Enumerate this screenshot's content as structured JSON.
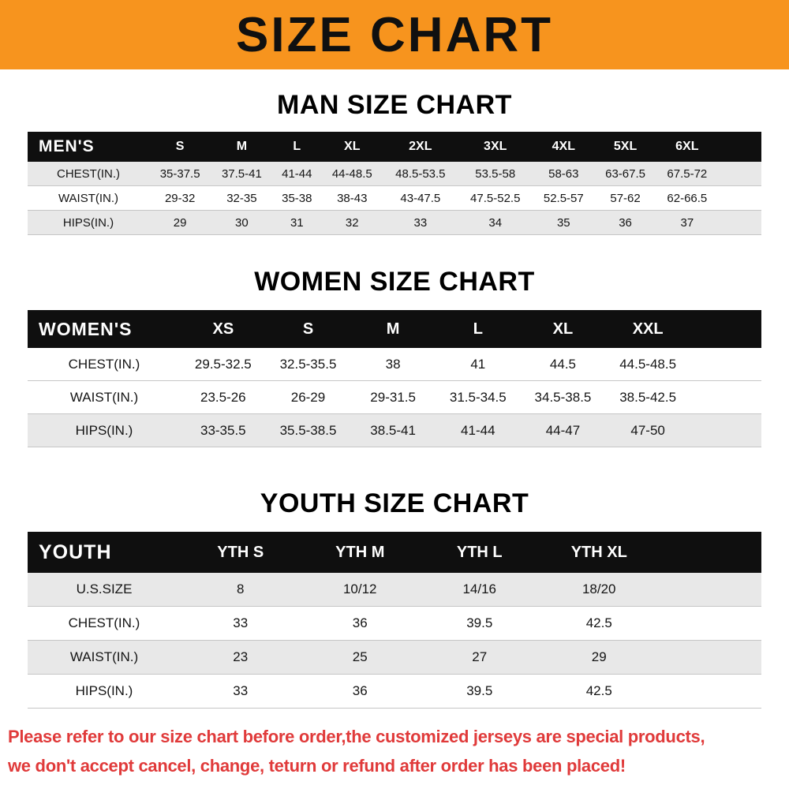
{
  "banner": {
    "title": "SIZE CHART",
    "bg_color": "#F7941E"
  },
  "sections": {
    "men": {
      "heading": "MAN SIZE CHART",
      "table": {
        "header_label": "MEN'S",
        "columns": [
          "S",
          "M",
          "L",
          "XL",
          "2XL",
          "3XL",
          "4XL",
          "5XL",
          "6XL"
        ],
        "rows": [
          {
            "label": "CHEST(IN.)",
            "values": [
              "35-37.5",
              "37.5-41",
              "41-44",
              "44-48.5",
              "48.5-53.5",
              "53.5-58",
              "58-63",
              "63-67.5",
              "67.5-72"
            ]
          },
          {
            "label": "WAIST(IN.)",
            "values": [
              "29-32",
              "32-35",
              "35-38",
              "38-43",
              "43-47.5",
              "47.5-52.5",
              "52.5-57",
              "57-62",
              "62-66.5"
            ]
          },
          {
            "label": "HIPS(IN.)",
            "values": [
              "29",
              "30",
              "31",
              "32",
              "33",
              "34",
              "35",
              "36",
              "37"
            ]
          }
        ]
      }
    },
    "women": {
      "heading": "WOMEN SIZE CHART",
      "table": {
        "header_label": "WOMEN'S",
        "columns": [
          "XS",
          "S",
          "M",
          "L",
          "XL",
          "XXL"
        ],
        "rows": [
          {
            "label": "CHEST(IN.)",
            "values": [
              "29.5-32.5",
              "32.5-35.5",
              "38",
              "41",
              "44.5",
              "44.5-48.5"
            ]
          },
          {
            "label": "WAIST(IN.)",
            "values": [
              "23.5-26",
              "26-29",
              "29-31.5",
              "31.5-34.5",
              "34.5-38.5",
              "38.5-42.5"
            ]
          },
          {
            "label": "HIPS(IN.)",
            "values": [
              "33-35.5",
              "35.5-38.5",
              "38.5-41",
              "41-44",
              "44-47",
              "47-50"
            ]
          }
        ]
      }
    },
    "youth": {
      "heading": "YOUTH SIZE CHART",
      "table": {
        "header_label": "YOUTH",
        "columns": [
          "YTH S",
          "YTH M",
          "YTH L",
          "YTH XL"
        ],
        "rows": [
          {
            "label": "U.S.SIZE",
            "values": [
              "8",
              "10/12",
              "14/16",
              "18/20"
            ]
          },
          {
            "label": "CHEST(IN.)",
            "values": [
              "33",
              "36",
              "39.5",
              "42.5"
            ]
          },
          {
            "label": "WAIST(IN.)",
            "values": [
              "23",
              "25",
              "27",
              "29"
            ]
          },
          {
            "label": "HIPS(IN.)",
            "values": [
              "33",
              "36",
              "39.5",
              "42.5"
            ]
          }
        ]
      }
    }
  },
  "footer": {
    "line1": "Please refer to our size chart before order,the customized jerseys are special products,",
    "line2": "we don't accept cancel, change, teturn or refund after order has been placed!",
    "text_color": "#E03A3A",
    "shaded_row_color": "#E8E8E8"
  }
}
